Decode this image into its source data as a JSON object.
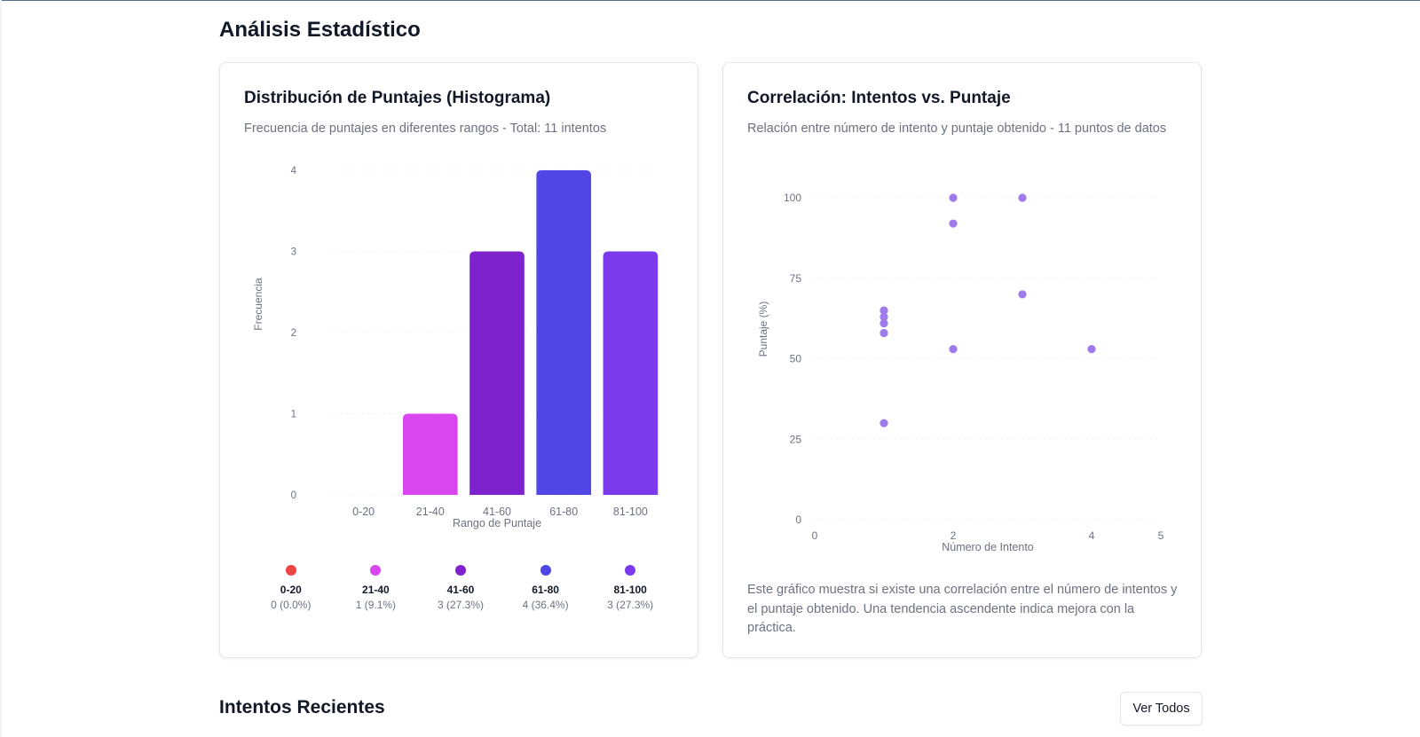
{
  "section": {
    "title": "Análisis Estadístico"
  },
  "histogram": {
    "title": "Distribución de Puntajes (Histograma)",
    "description": "Frecuencia de puntajes en diferentes rangos - Total: 11 intentos",
    "legend": [
      {
        "label": "0-20",
        "value": "0 (0.0%)",
        "color": "#ef4444"
      },
      {
        "label": "21-40",
        "value": "1 (9.1%)",
        "color": "#d946ef"
      },
      {
        "label": "41-60",
        "value": "3 (27.3%)",
        "color": "#7e22ce"
      },
      {
        "label": "61-80",
        "value": "4 (36.4%)",
        "color": "#4f46e5"
      },
      {
        "label": "81-100",
        "value": "3 (27.3%)",
        "color": "#7c3aed"
      }
    ]
  },
  "scatter": {
    "title": "Correlación: Intentos vs. Puntaje",
    "description": "Relación entre número de intento y puntaje obtenido - 11 puntos de datos",
    "note": "Este gráfico muestra si existe una correlación entre el número de intentos y el puntaje obtenido. Una tendencia ascendente indica mejora con la práctica."
  },
  "recent": {
    "title": "Intentos Recientes",
    "view_all_label": "Ver Todos"
  },
  "chart_data": [
    {
      "type": "bar",
      "categories": [
        "0-20",
        "21-40",
        "41-60",
        "61-80",
        "81-100"
      ],
      "values": [
        0,
        1,
        3,
        4,
        3
      ],
      "colors": [
        "#ef4444",
        "#d946ef",
        "#7e22ce",
        "#4f46e5",
        "#7c3aed"
      ],
      "xlabel": "Rango de Puntaje",
      "ylabel": "Frecuencia",
      "ylim": [
        0,
        4
      ],
      "yticks": [
        "0",
        "1",
        "2",
        "3",
        "4"
      ],
      "grid": false
    },
    {
      "type": "scatter",
      "xlabel": "Número de Intento",
      "ylabel": "Puntaje (%)",
      "xlim": [
        0,
        5
      ],
      "ylim": [
        0,
        100
      ],
      "xticks": [
        "0",
        "2",
        "4",
        "5"
      ],
      "yticks": [
        "0",
        "25",
        "50",
        "75",
        "100"
      ],
      "point_color": "#9f7aea",
      "points": [
        {
          "x": 1,
          "y": 65
        },
        {
          "x": 1,
          "y": 63
        },
        {
          "x": 1,
          "y": 61
        },
        {
          "x": 1,
          "y": 58
        },
        {
          "x": 1,
          "y": 30
        },
        {
          "x": 2,
          "y": 100
        },
        {
          "x": 2,
          "y": 92
        },
        {
          "x": 2,
          "y": 53
        },
        {
          "x": 3,
          "y": 100
        },
        {
          "x": 3,
          "y": 70
        },
        {
          "x": 4,
          "y": 53
        }
      ]
    }
  ]
}
